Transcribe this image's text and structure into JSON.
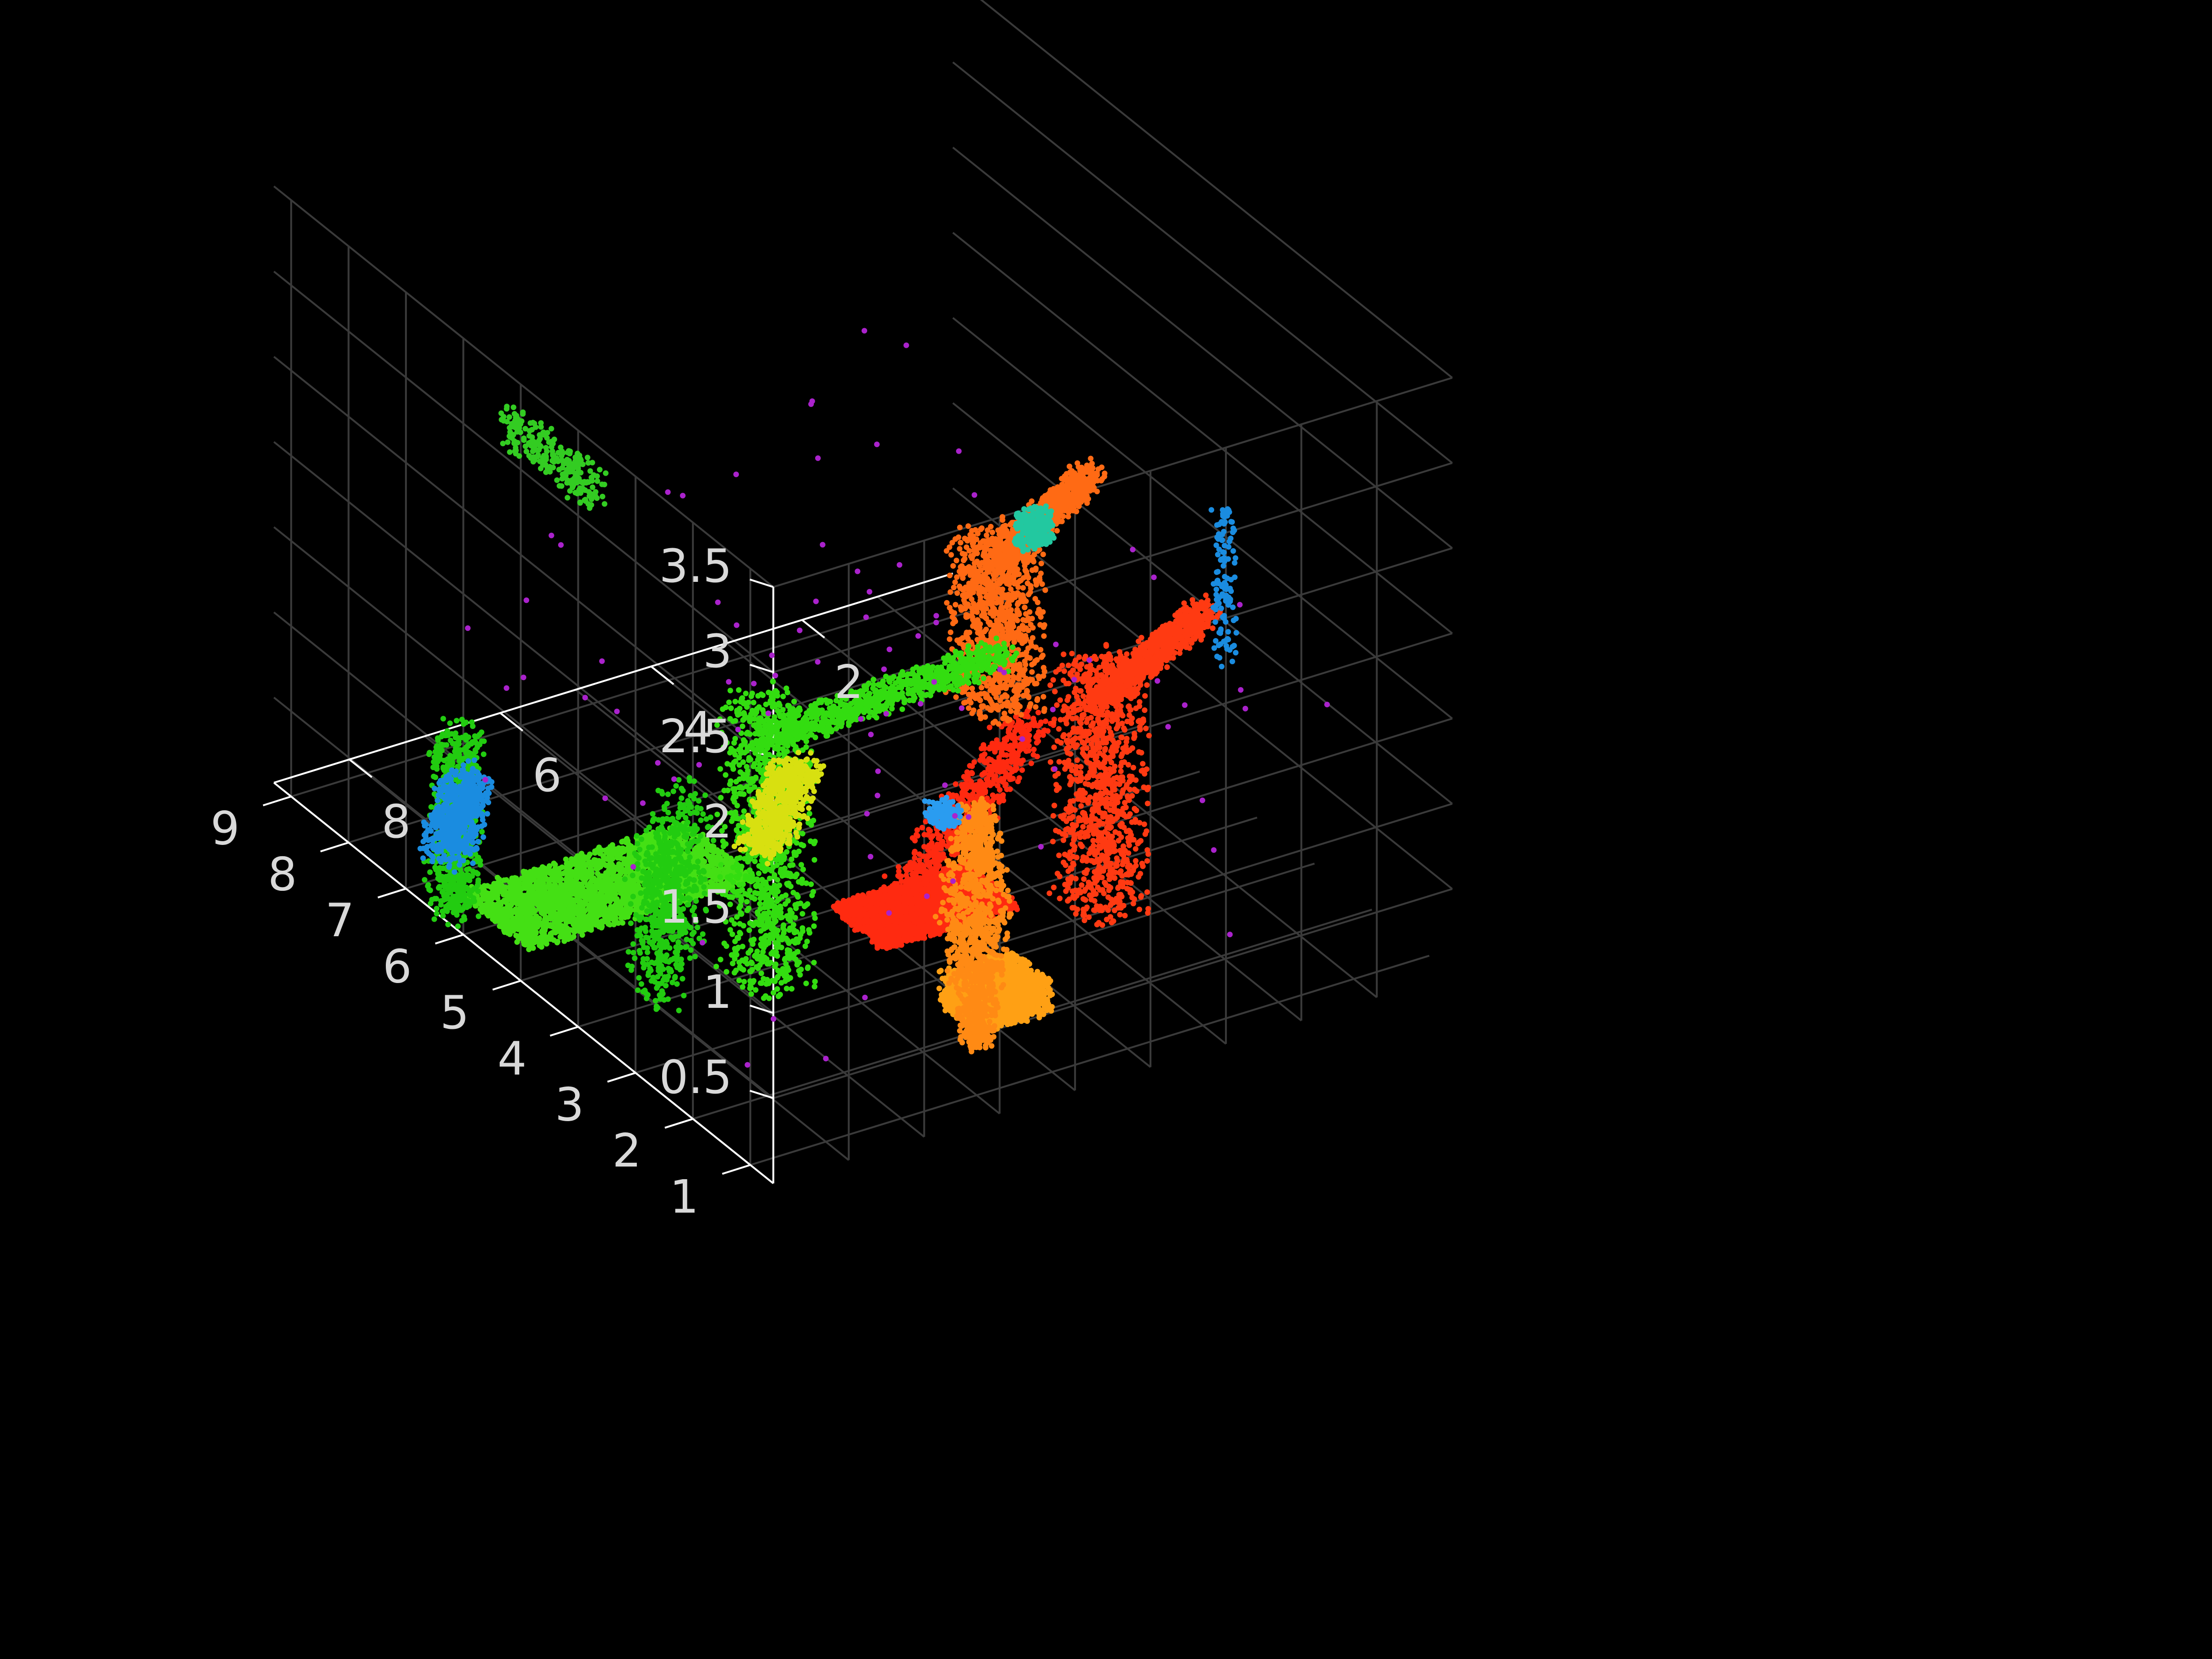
{
  "chart_data": {
    "type": "scatter",
    "projection": "3d",
    "title": "",
    "xlabel": "",
    "ylabel": "",
    "zlabel": "",
    "background_color": "#000000",
    "axis_color": "#ffffff",
    "grid": true,
    "grid_color": "#3a3a3a",
    "legend": "none",
    "x_axis": {
      "ticks": [
        2,
        4,
        6,
        8
      ],
      "tick_labels": [
        "2",
        "4",
        "6",
        "8"
      ],
      "range": [
        0,
        9
      ]
    },
    "y_axis": {
      "ticks": [
        1,
        2,
        3,
        4,
        5,
        6,
        7,
        8,
        9
      ],
      "tick_labels": [
        "1",
        "2",
        "3",
        "4",
        "5",
        "6",
        "7",
        "8",
        "9"
      ],
      "range": [
        0.6,
        9.3
      ]
    },
    "z_axis": {
      "ticks": [
        0.5,
        1,
        1.5,
        2,
        2.5,
        3,
        3.5
      ],
      "tick_labels": [
        "0.5",
        "1",
        "1.5",
        "2",
        "2.5",
        "3",
        "3.5"
      ],
      "range": [
        0,
        3.5
      ]
    },
    "clusters": [
      {
        "color": "#ff2a10",
        "shape": "box",
        "x": [
          3.4,
          5.2
        ],
        "y": [
          3.7,
          4.6
        ],
        "z": [
          0.0,
          0.05
        ]
      },
      {
        "color": "#ff2a10",
        "shape": "scatter",
        "x": [
          1.2,
          4.4
        ],
        "y": [
          4.3,
          6.4
        ],
        "z": [
          0.0,
          0.15
        ]
      },
      {
        "color": "#ff3a12",
        "shape": "robot",
        "x": [
          1.6,
          3.4
        ],
        "y": [
          2.3,
          4.4
        ],
        "z": [
          0.0,
          1.9
        ]
      },
      {
        "color": "#ff6a14",
        "shape": "robot",
        "x": [
          3.6,
          6.2
        ],
        "y": [
          1.6,
          2.3
        ],
        "z": [
          1.9,
          3.2
        ]
      },
      {
        "color": "#ffa014",
        "shape": "box",
        "x": [
          4.3,
          5.3
        ],
        "y": [
          1.9,
          2.6
        ],
        "z": [
          0.0,
          0.2
        ]
      },
      {
        "color": "#ff8a14",
        "shape": "figure",
        "x": [
          5.0,
          5.8
        ],
        "y": [
          1.3,
          2.3
        ],
        "z": [
          0.0,
          1.4
        ]
      },
      {
        "color": "#44e014",
        "shape": "box",
        "x": [
          5.6,
          8.6
        ],
        "y": [
          5.4,
          6.6
        ],
        "z": [
          0.0,
          0.05
        ]
      },
      {
        "color": "#33dd10",
        "shape": "robot",
        "x": [
          4.3,
          8.6
        ],
        "y": [
          1.7,
          5.9
        ],
        "z": [
          0.0,
          2.2
        ]
      },
      {
        "color": "#22cc10",
        "shape": "scatter",
        "x": [
          6.8,
          9.0
        ],
        "y": [
          6.2,
          9.0
        ],
        "z": [
          0.0,
          0.15
        ]
      },
      {
        "color": "#22cc10",
        "shape": "scatter",
        "x": [
          6.8,
          8.2
        ],
        "y": [
          3.8,
          5.0
        ],
        "z": [
          0.0,
          0.9
        ]
      },
      {
        "color": "#33cc22",
        "shape": "panel",
        "x": [
          8.6,
          8.9
        ],
        "y": [
          4.0,
          5.6
        ],
        "z": [
          3.0,
          3.2
        ]
      },
      {
        "color": "#1a8ce0",
        "shape": "scatter",
        "x": [
          7.3,
          8.3
        ],
        "y": [
          7.2,
          8.2
        ],
        "z": [
          0.0,
          0.15
        ]
      },
      {
        "color": "#2a9cf0",
        "shape": "blob",
        "x": [
          2.9,
          3.2
        ],
        "y": [
          5.3,
          5.6
        ],
        "z": [
          0.0,
          0.1
        ]
      },
      {
        "color": "#1a8ce0",
        "shape": "column",
        "x": [
          1.4,
          1.6
        ],
        "y": [
          2.5,
          2.7
        ],
        "z": [
          1.5,
          2.4
        ]
      },
      {
        "color": "#22c8a0",
        "shape": "panel",
        "x": [
          5.2,
          5.6
        ],
        "y": [
          0.7,
          0.9
        ],
        "z": [
          3.2,
          3.4
        ]
      },
      {
        "color": "#d8e010",
        "shape": "scatter",
        "x": [
          3.8,
          5.2
        ],
        "y": [
          5.8,
          7.0
        ],
        "z": [
          0.0,
          0.05
        ]
      },
      {
        "color": "#aa22cc",
        "shape": "noise",
        "x": [
          0.5,
          8.5
        ],
        "y": [
          1.0,
          9.0
        ],
        "z": [
          0.0,
          2.0
        ]
      }
    ]
  }
}
